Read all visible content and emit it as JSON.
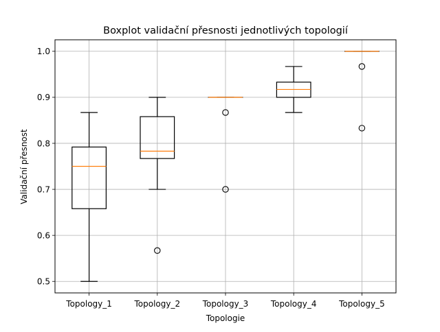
{
  "chart_data": {
    "type": "boxplot",
    "title": "Boxplot validační přesnosti jednotlivých topologií",
    "xlabel": "Topologie",
    "ylabel": "Validační přesnost",
    "categories": [
      "Topology_1",
      "Topology_2",
      "Topology_3",
      "Topology_4",
      "Topology_5"
    ],
    "boxes": [
      {
        "name": "Topology_1",
        "whisker_low": 0.5,
        "q1": 0.658,
        "median": 0.75,
        "q3": 0.792,
        "whisker_high": 0.867,
        "outliers": []
      },
      {
        "name": "Topology_2",
        "whisker_low": 0.7,
        "q1": 0.767,
        "median": 0.783,
        "q3": 0.858,
        "whisker_high": 0.9,
        "outliers": [
          0.567
        ]
      },
      {
        "name": "Topology_3",
        "whisker_low": 0.9,
        "q1": 0.9,
        "median": 0.9,
        "q3": 0.9,
        "whisker_high": 0.9,
        "outliers": [
          0.867,
          0.7
        ]
      },
      {
        "name": "Topology_4",
        "whisker_low": 0.867,
        "q1": 0.9,
        "median": 0.917,
        "q3": 0.933,
        "whisker_high": 0.967,
        "outliers": []
      },
      {
        "name": "Topology_5",
        "whisker_low": 1.0,
        "q1": 1.0,
        "median": 1.0,
        "q3": 1.0,
        "whisker_high": 1.0,
        "outliers": [
          0.967,
          0.833
        ]
      }
    ],
    "yticks": [
      0.5,
      0.6,
      0.7,
      0.8,
      0.9,
      1.0
    ],
    "ytick_labels": [
      "0.5",
      "0.6",
      "0.7",
      "0.8",
      "0.9",
      "1.0"
    ],
    "ylim": [
      0.475,
      1.025
    ],
    "grid": true,
    "colors": {
      "box": "#000000",
      "median": "#ff7f0e",
      "grid": "#b0b0b0",
      "outlier": "#000000"
    }
  }
}
